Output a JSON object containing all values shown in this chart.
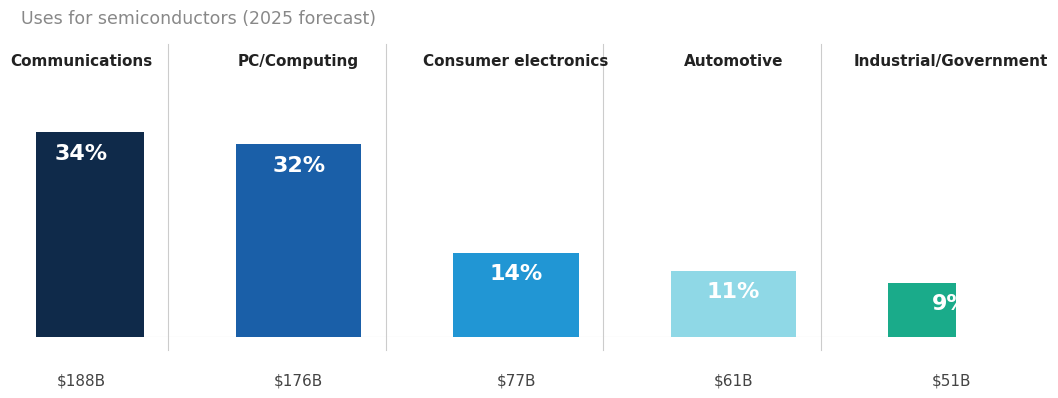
{
  "title": "Uses for semiconductors (2025 forecast)",
  "categories": [
    "Communications",
    "PC/Computing",
    "Consumer electronics",
    "Automotive",
    "Industrial/Government"
  ],
  "values": [
    34,
    32,
    14,
    11,
    9
  ],
  "dollar_labels": [
    "$188B",
    "$176B",
    "$77B",
    "$61B",
    "$51B"
  ],
  "pct_labels": [
    "34%",
    "32%",
    "14%",
    "11%",
    "9%"
  ],
  "bar_colors": [
    "#0f2a4a",
    "#1a5fa8",
    "#2196d4",
    "#8fd8e6",
    "#1aab8a"
  ],
  "background_color": "#ffffff",
  "title_color": "#888888",
  "title_fontsize": 12.5,
  "category_fontsize": 11,
  "pct_fontsize": 16,
  "dollar_fontsize": 11,
  "bar_width": 0.68,
  "figsize": [
    10.0,
    4.31
  ]
}
